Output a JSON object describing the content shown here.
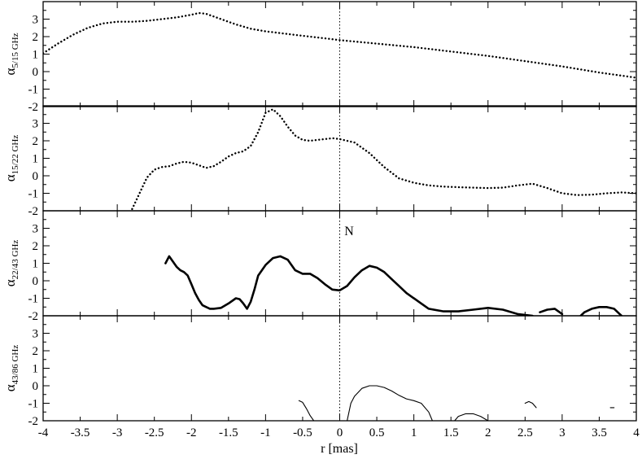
{
  "figure": {
    "x_axis_label": "r [mas]",
    "x_ticks": [
      "-4",
      "-3.5",
      "-3",
      "-2.5",
      "-2",
      "-1.5",
      "-1",
      "-0.5",
      "0",
      "0.5",
      "1",
      "1.5",
      "2",
      "2.5",
      "3",
      "3.5",
      "4"
    ],
    "y_ticks": [
      "-2",
      "-1",
      "0",
      "1",
      "2",
      "3"
    ],
    "annotation": "N"
  },
  "chart_data": [
    {
      "type": "scatter",
      "ylabel_symbol": "α",
      "ylabel_subscript": "5/15 GHz",
      "xlim": [
        -4,
        4
      ],
      "ylim": [
        -2,
        4
      ],
      "style": "dotted",
      "series": [
        {
          "x": [
            -4.0,
            -3.8,
            -3.6,
            -3.4,
            -3.2,
            -3.0,
            -2.8,
            -2.6,
            -2.4,
            -2.2,
            -2.0,
            -1.9,
            -1.8,
            -1.6,
            -1.4,
            -1.2,
            -1.0,
            -0.8,
            -0.6,
            -0.4,
            -0.2,
            0.0,
            0.5,
            1.0,
            1.5,
            2.0,
            2.5,
            3.0,
            3.5,
            4.0
          ],
          "y": [
            1.05,
            1.6,
            2.1,
            2.5,
            2.75,
            2.85,
            2.85,
            2.9,
            3.0,
            3.1,
            3.25,
            3.35,
            3.3,
            3.0,
            2.7,
            2.45,
            2.3,
            2.2,
            2.1,
            2.0,
            1.9,
            1.8,
            1.6,
            1.4,
            1.15,
            0.9,
            0.6,
            0.3,
            -0.05,
            -0.35
          ]
        }
      ]
    },
    {
      "type": "scatter",
      "ylabel_symbol": "α",
      "ylabel_subscript": "15/22 GHz",
      "xlim": [
        -4,
        4
      ],
      "ylim": [
        -2,
        4
      ],
      "style": "dotted",
      "series": [
        {
          "x": [
            -2.8,
            -2.7,
            -2.6,
            -2.5,
            -2.4,
            -2.3,
            -2.2,
            -2.1,
            -2.0,
            -1.9,
            -1.8,
            -1.7,
            -1.6,
            -1.5,
            -1.4,
            -1.3,
            -1.2,
            -1.1,
            -1.0,
            -0.9,
            -0.8,
            -0.7,
            -0.6,
            -0.5,
            -0.4,
            -0.3,
            -0.2,
            -0.1,
            0.0,
            0.2,
            0.4,
            0.6,
            0.8,
            1.0,
            1.2,
            1.4,
            1.6,
            1.8,
            2.0,
            2.2,
            2.4,
            2.6,
            2.8,
            3.0,
            3.2,
            3.4,
            3.6,
            3.8,
            4.0
          ],
          "y": [
            -1.9,
            -1.0,
            -0.1,
            0.35,
            0.5,
            0.55,
            0.7,
            0.8,
            0.75,
            0.6,
            0.45,
            0.55,
            0.8,
            1.1,
            1.3,
            1.4,
            1.7,
            2.5,
            3.6,
            3.8,
            3.4,
            2.8,
            2.3,
            2.05,
            2.0,
            2.05,
            2.1,
            2.15,
            2.1,
            1.9,
            1.3,
            0.5,
            -0.15,
            -0.4,
            -0.55,
            -0.62,
            -0.65,
            -0.68,
            -0.7,
            -0.68,
            -0.55,
            -0.45,
            -0.7,
            -1.0,
            -1.1,
            -1.08,
            -1.0,
            -0.95,
            -1.0
          ]
        }
      ]
    },
    {
      "type": "line",
      "ylabel_symbol": "α",
      "ylabel_subscript": "22/43 GHz",
      "xlim": [
        -4,
        4
      ],
      "ylim": [
        -2,
        4
      ],
      "style": "thick",
      "series": [
        {
          "x": [
            -2.35,
            -2.3,
            -2.25,
            -2.2,
            -2.15,
            -2.1,
            -2.05,
            -2.0,
            -1.95,
            -1.9,
            -1.85,
            -1.8,
            -1.75,
            -1.7,
            -1.6,
            -1.5,
            -1.4,
            -1.35,
            -1.3,
            -1.25,
            -1.2,
            -1.15,
            -1.1,
            -1.0,
            -0.9,
            -0.8,
            -0.7,
            -0.6,
            -0.5,
            -0.4,
            -0.3,
            -0.2,
            -0.1,
            0.0,
            0.1,
            0.2,
            0.3,
            0.4,
            0.5,
            0.6,
            0.7,
            0.8,
            0.9,
            1.0,
            1.1,
            1.2,
            1.4,
            1.6,
            1.8,
            2.0,
            2.2,
            2.4,
            2.6
          ],
          "y": [
            1.0,
            1.4,
            1.1,
            0.8,
            0.6,
            0.5,
            0.3,
            -0.2,
            -0.7,
            -1.1,
            -1.4,
            -1.5,
            -1.6,
            -1.6,
            -1.55,
            -1.3,
            -1.0,
            -1.05,
            -1.3,
            -1.6,
            -1.2,
            -0.5,
            0.3,
            0.9,
            1.3,
            1.4,
            1.2,
            0.6,
            0.4,
            0.4,
            0.15,
            -0.2,
            -0.5,
            -0.55,
            -0.3,
            0.2,
            0.6,
            0.85,
            0.75,
            0.5,
            0.1,
            -0.3,
            -0.7,
            -1.0,
            -1.3,
            -1.6,
            -1.75,
            -1.75,
            -1.65,
            -1.55,
            -1.65,
            -1.9,
            -2.0
          ]
        },
        {
          "x": [
            2.7,
            2.8,
            2.9,
            3.0
          ],
          "y": [
            -1.8,
            -1.65,
            -1.6,
            -1.9
          ]
        },
        {
          "x": [
            3.25,
            3.3,
            3.4,
            3.5,
            3.6,
            3.7,
            3.8
          ],
          "y": [
            -2.0,
            -1.8,
            -1.6,
            -1.5,
            -1.5,
            -1.6,
            -2.0
          ]
        }
      ]
    },
    {
      "type": "line",
      "ylabel_symbol": "α",
      "ylabel_subscript": "43/86 GHz",
      "xlim": [
        -4,
        4
      ],
      "ylim": [
        -2,
        4
      ],
      "style": "thin",
      "series": [
        {
          "x": [
            -0.55,
            -0.5,
            -0.45,
            -0.4,
            -0.35
          ],
          "y": [
            -0.85,
            -0.95,
            -1.3,
            -1.7,
            -2.0
          ]
        },
        {
          "x": [
            0.1,
            0.15,
            0.2,
            0.3,
            0.4,
            0.5,
            0.6,
            0.7,
            0.8,
            0.9,
            1.0,
            1.1,
            1.2,
            1.25
          ],
          "y": [
            -2.0,
            -1.0,
            -0.6,
            -0.15,
            0.0,
            0.0,
            -0.1,
            -0.3,
            -0.55,
            -0.75,
            -0.85,
            -1.0,
            -1.5,
            -2.0
          ]
        },
        {
          "x": [
            1.55,
            1.6,
            1.7,
            1.8,
            1.9,
            2.0
          ],
          "y": [
            -2.0,
            -1.75,
            -1.6,
            -1.6,
            -1.75,
            -2.0
          ]
        },
        {
          "x": [
            2.5,
            2.55,
            2.6,
            2.65
          ],
          "y": [
            -1.0,
            -0.9,
            -1.0,
            -1.25
          ]
        },
        {
          "x": [
            3.65,
            3.7
          ],
          "y": [
            -1.25,
            -1.25
          ]
        }
      ]
    }
  ]
}
